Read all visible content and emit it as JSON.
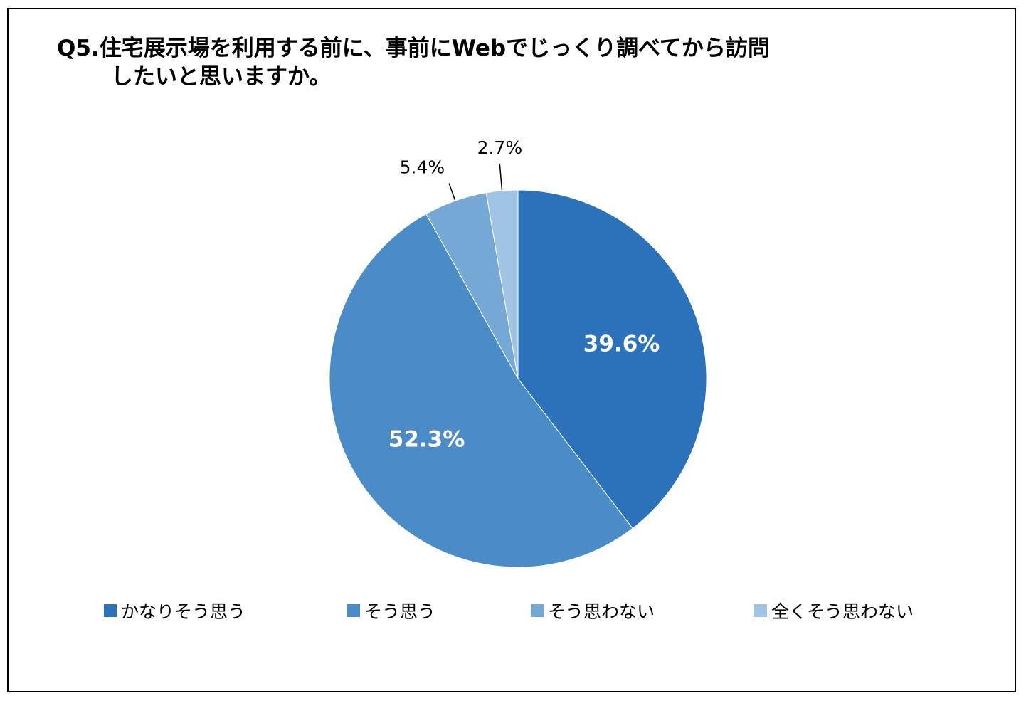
{
  "title": {
    "line1": "Q5.住宅展示場を利用する前に、事前にWebでじっくり調べてから訪問",
    "line2": "したいと思いますか。"
  },
  "chart_data": {
    "type": "pie",
    "title": "Q5.住宅展示場を利用する前に、事前にWebでじっくり調べてから訪問したいと思いますか。",
    "start_angle_deg": 0,
    "direction": "clockwise",
    "categories": [
      "かなりそう思う",
      "そう思う",
      "そう思わない",
      "全くそう思わない"
    ],
    "values": [
      39.6,
      52.3,
      5.4,
      2.7
    ],
    "labels": [
      "39.6%",
      "52.3%",
      "5.4%",
      "2.7%"
    ],
    "colors": [
      "#2b72bb",
      "#4a8cc7",
      "#76a8d6",
      "#a2c4e4"
    ],
    "legend": "bottom"
  }
}
